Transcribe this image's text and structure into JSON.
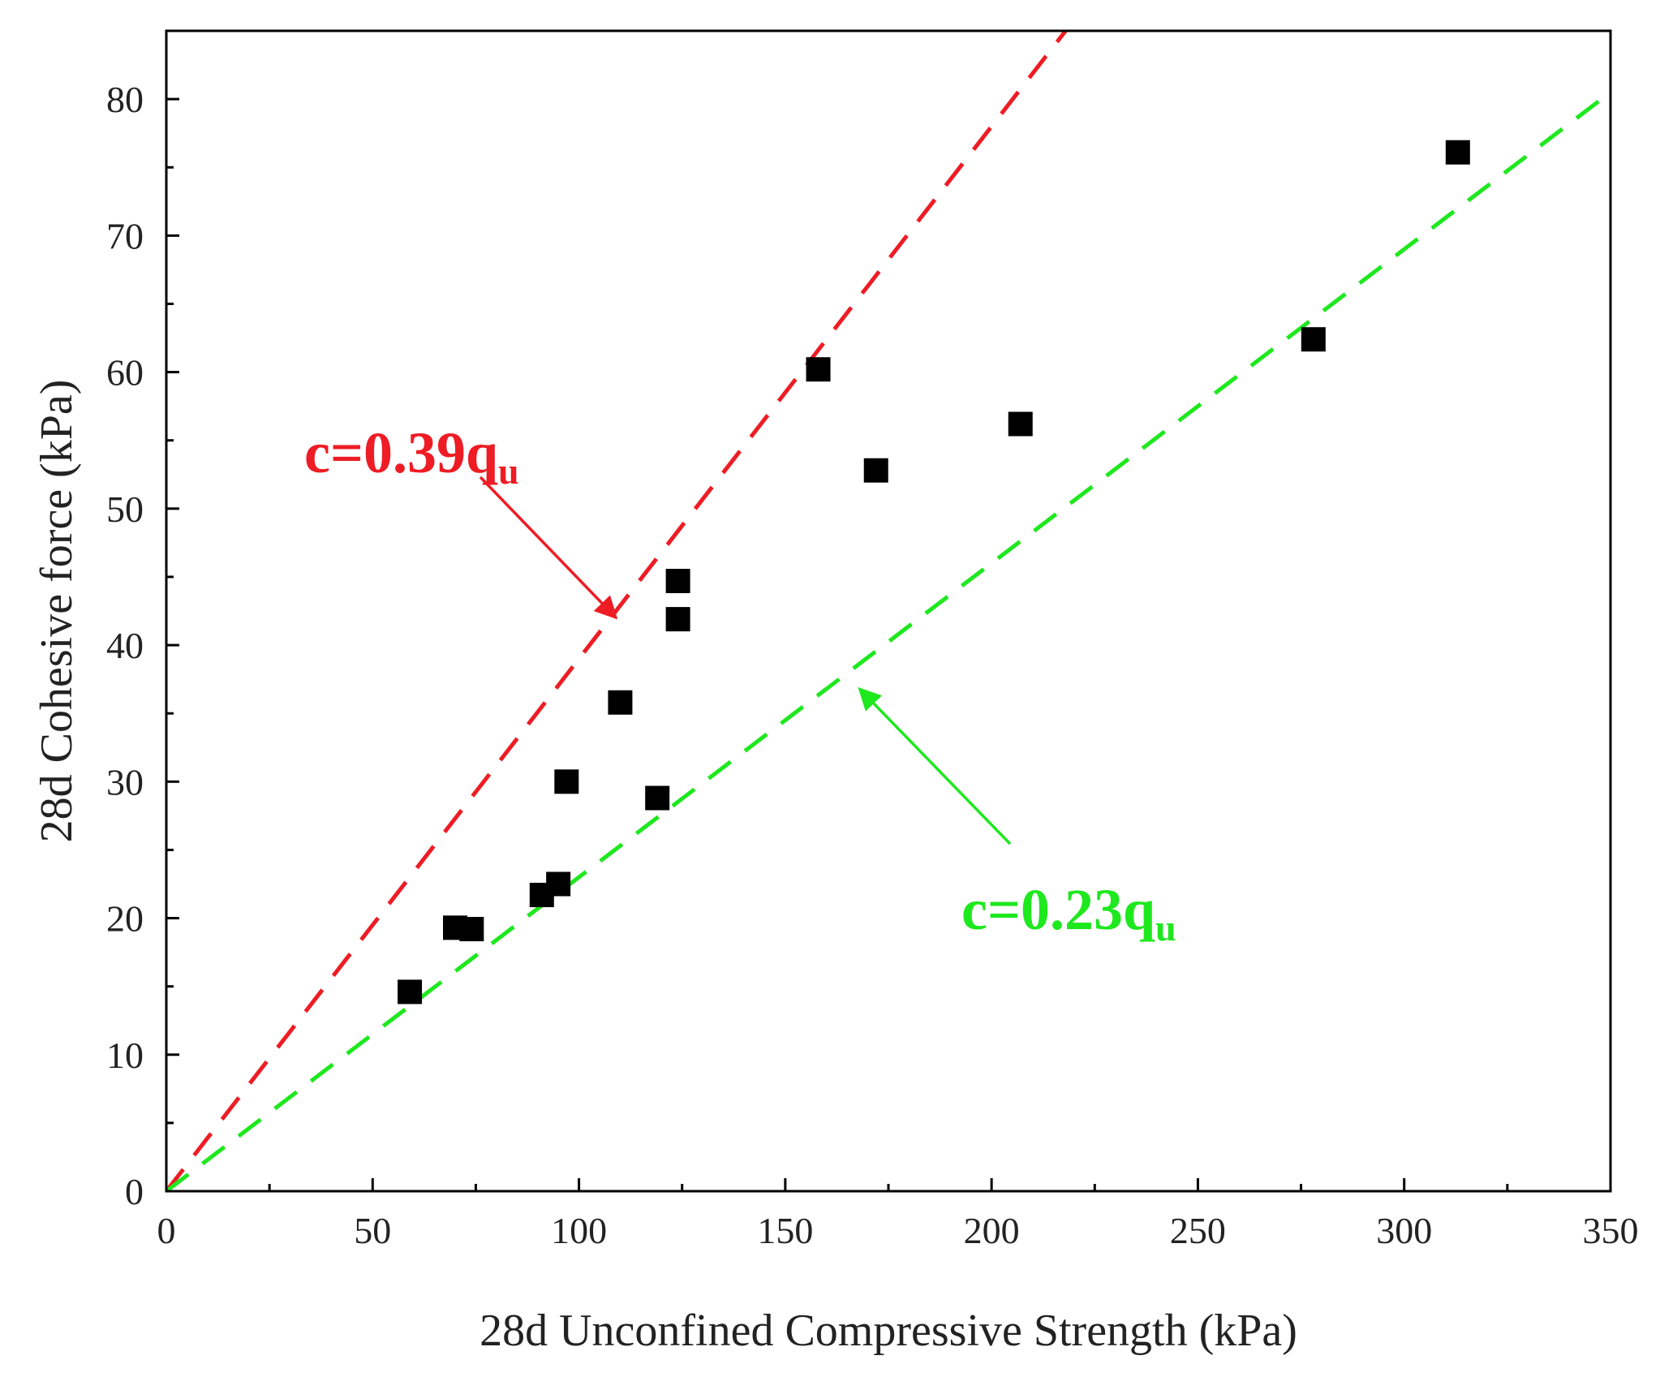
{
  "chart_data": {
    "type": "scatter",
    "xlabel": "28d Unconfined Compressive Strength (kPa)",
    "ylabel": "28d Cohesive force (kPa)",
    "xlim": [
      0,
      350
    ],
    "ylim": [
      0,
      85
    ],
    "xticks": [
      0,
      50,
      100,
      150,
      200,
      250,
      300,
      350
    ],
    "yticks": [
      0,
      10,
      20,
      30,
      40,
      50,
      60,
      70,
      80
    ],
    "series": [
      {
        "name": "data",
        "marker": "square",
        "color": "#000000",
        "points": [
          {
            "x": 59,
            "y": 14.6
          },
          {
            "x": 70,
            "y": 19.3
          },
          {
            "x": 74,
            "y": 19.2
          },
          {
            "x": 91,
            "y": 21.7
          },
          {
            "x": 95,
            "y": 22.5
          },
          {
            "x": 97,
            "y": 30.0
          },
          {
            "x": 110,
            "y": 35.8
          },
          {
            "x": 119,
            "y": 28.8
          },
          {
            "x": 124,
            "y": 41.9
          },
          {
            "x": 124,
            "y": 44.7
          },
          {
            "x": 158,
            "y": 60.2
          },
          {
            "x": 172,
            "y": 52.8
          },
          {
            "x": 207,
            "y": 56.2
          },
          {
            "x": 278,
            "y": 62.4
          },
          {
            "x": 313,
            "y": 76.1
          }
        ]
      }
    ],
    "lines": [
      {
        "name": "upper",
        "slope": 0.39,
        "color": "#ee1c24",
        "style": "dashed",
        "label_main": "c=0.39q",
        "label_sub": "u",
        "arrow_to": {
          "x": 109,
          "y": 42
        }
      },
      {
        "name": "lower",
        "slope": 0.23,
        "color": "#1ee81e",
        "style": "dashed",
        "label_main": "c=0.23q",
        "label_sub": "u",
        "arrow_to": {
          "x": 168,
          "y": 36.8
        }
      }
    ]
  }
}
